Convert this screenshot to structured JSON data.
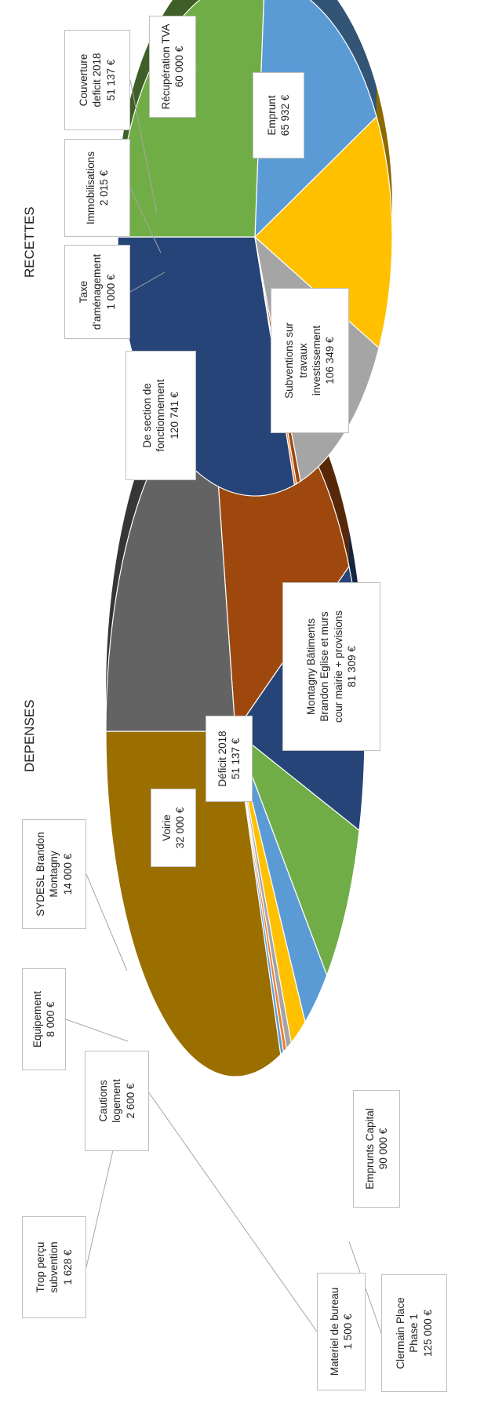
{
  "chart_data": [
    {
      "type": "pie",
      "title": "DEPENSES",
      "slices": [
        {
          "label": [
            "Clermain Place",
            "Phase 1"
          ],
          "value_text": "125 000 €",
          "value": 125000,
          "color": "#9a6f00"
        },
        {
          "label": [
            "Materiel de bureau"
          ],
          "value_text": "1 500 €",
          "value": 1500,
          "color": "#5b9bd5"
        },
        {
          "label": [
            "Trop perçu",
            "subvention"
          ],
          "value_text": "1 628 €",
          "value": 1628,
          "color": "#ed7d31"
        },
        {
          "label": [
            "Cautions",
            "logement"
          ],
          "value_text": "2 600 €",
          "value": 2600,
          "color": "#a5a5a5"
        },
        {
          "label": [
            "Equipement"
          ],
          "value_text": "8 000 €",
          "value": 8000,
          "color": "#ffc000"
        },
        {
          "label": [
            "SYDESL Brandon",
            "Montagny"
          ],
          "value_text": "14 000 €",
          "value": 14000,
          "color": "#5b9bd5"
        },
        {
          "label": [
            "Voirie"
          ],
          "value_text": "32 000 €",
          "value": 32000,
          "color": "#70ad47"
        },
        {
          "label": [
            "Déficit 2018"
          ],
          "value_text": "51 137 €",
          "value": 51137,
          "color": "#264478"
        },
        {
          "label": [
            "Montagny Bâtiments",
            "Brandon Eglise et murs",
            "cour mairie + provisions"
          ],
          "value_text": "81 309 €",
          "value": 81309,
          "color": "#9e480e"
        },
        {
          "label": [
            "Emprunts Capital"
          ],
          "value_text": "90 000 €",
          "value": 90000,
          "color": "#636363"
        }
      ]
    },
    {
      "type": "pie",
      "title": "RECETTES",
      "slices": [
        {
          "label": [
            "De section de",
            "fonctionnement"
          ],
          "value_text": "120 741 €",
          "value": 120741,
          "color": "#264478"
        },
        {
          "label": [
            "Taxe",
            "d'aménagement"
          ],
          "value_text": "1 000 €",
          "value": 1000,
          "color": "#ed7d31"
        },
        {
          "label": [
            "Immobilisations"
          ],
          "value_text": "2 015 €",
          "value": 2015,
          "color": "#9e480e"
        },
        {
          "label": [
            "Couverture",
            "deficit 2018"
          ],
          "value_text": "51 137 €",
          "value": 51137,
          "color": "#a5a5a5"
        },
        {
          "label": [
            "Récupération TVA"
          ],
          "value_text": "60 000 €",
          "value": 60000,
          "color": "#ffc000"
        },
        {
          "label": [
            "Emprunt"
          ],
          "value_text": "65 932 €",
          "value": 65932,
          "color": "#5b9bd5"
        },
        {
          "label": [
            "Subventions  sur",
            "travaux",
            "investissement"
          ],
          "value_text": "106 349 €",
          "value": 106349,
          "color": "#70ad47"
        }
      ]
    }
  ]
}
